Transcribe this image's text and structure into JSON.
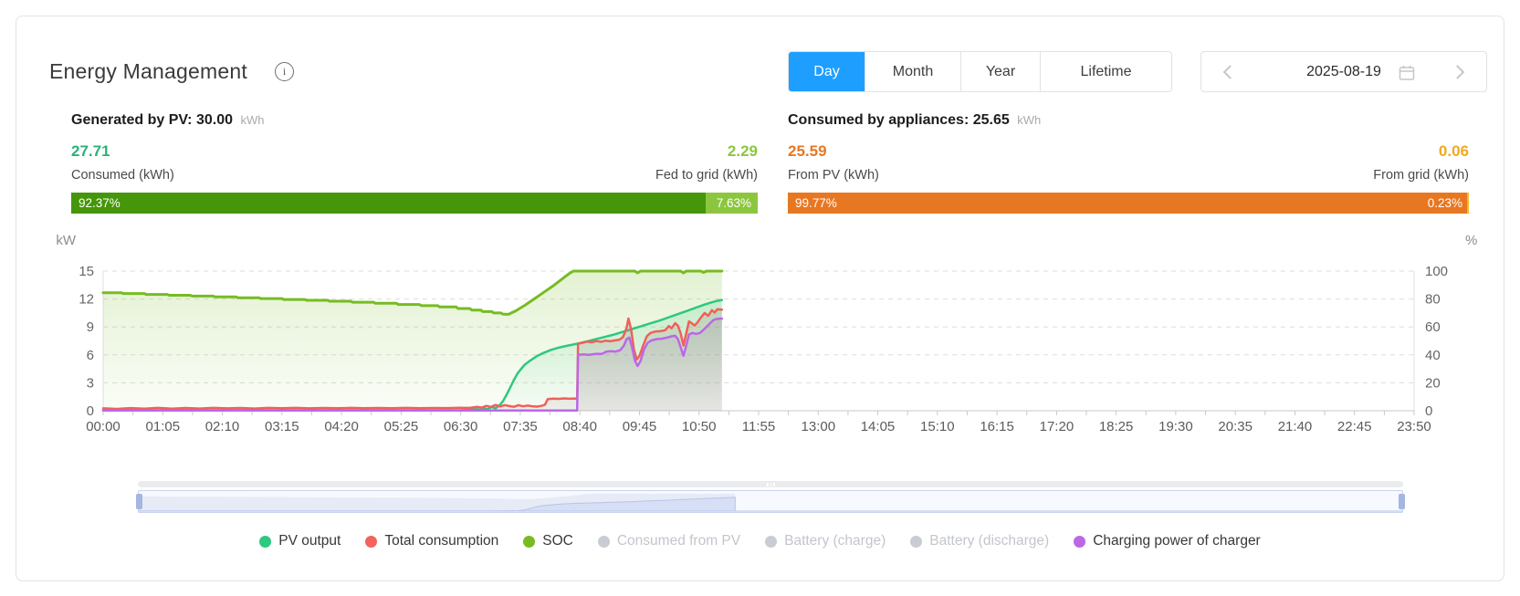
{
  "header": {
    "title": "Energy Management",
    "info_icon": "i"
  },
  "colors": {
    "tab_active": "#1E9FFF",
    "axis_text": "#5b5b5b",
    "grid_line": "#dddddd"
  },
  "tabs": [
    {
      "label": "Day",
      "active": true
    },
    {
      "label": "Month",
      "active": false
    },
    {
      "label": "Year",
      "active": false
    },
    {
      "label": "Lifetime",
      "active": false
    }
  ],
  "date_nav": {
    "date": "2025-08-19",
    "prev_icon": "chevron-left",
    "next_icon": "chevron-right",
    "calendar_icon": "calendar"
  },
  "stats": {
    "pv": {
      "title": "Generated by PV:",
      "total": "30.00",
      "unit": "kWh",
      "left": {
        "value": "27.71",
        "label": "Consumed (kWh)",
        "percent": "92.37%",
        "color": "#27B376",
        "bar_color": "#45960B"
      },
      "right": {
        "value": "2.29",
        "label": "Fed to grid (kWh)",
        "percent": "7.63%",
        "color": "#8CC63F",
        "bar_color": "#8CC63F"
      },
      "left_pct": 92.37,
      "right_pct": 7.63
    },
    "appliances": {
      "title": "Consumed by appliances:",
      "total": "25.65",
      "unit": "kWh",
      "left": {
        "value": "25.59",
        "label": "From PV (kWh)",
        "percent": "99.77%",
        "color": "#E87722",
        "bar_color": "#E87722"
      },
      "right": {
        "value": "0.06",
        "label": "From grid (kWh)",
        "percent": "0.23%",
        "color": "#F0A91E",
        "bar_color": "#F7BA2A"
      },
      "left_pct": 99.77,
      "right_pct": 0.23
    }
  },
  "chart_data": {
    "type": "line",
    "x_tick_labels": [
      "00:00",
      "01:05",
      "02:10",
      "03:15",
      "04:20",
      "05:25",
      "06:30",
      "07:35",
      "08:40",
      "09:45",
      "10:50",
      "11:55",
      "13:00",
      "14:05",
      "15:10",
      "16:15",
      "17:20",
      "18:25",
      "19:30",
      "20:35",
      "21:40",
      "22:45",
      "23:50"
    ],
    "x_max_minutes": 1430,
    "x_label_interval_minutes": 65,
    "y_left": {
      "unit": "kW",
      "min": 0,
      "max": 15,
      "ticks": [
        0,
        3,
        6,
        9,
        12,
        15
      ]
    },
    "y_right": {
      "unit": "%",
      "min": 0,
      "max": 100,
      "ticks": [
        0,
        20,
        40,
        60,
        80,
        100
      ]
    },
    "grid": {
      "horizontal_dashed": true
    },
    "data_end_minute": 675,
    "series": [
      {
        "name": "SOC",
        "axis": "right",
        "unit": "%",
        "color": "#76BC21",
        "width": 3,
        "area_from": "rgba(118,188,33,0.20)",
        "area_to": "rgba(118,188,33,0.03)",
        "points": [
          [
            0,
            84.5
          ],
          [
            20,
            84.5
          ],
          [
            22,
            83.9
          ],
          [
            45,
            83.9
          ],
          [
            47,
            83.3
          ],
          [
            70,
            83.3
          ],
          [
            72,
            82.7
          ],
          [
            95,
            82.7
          ],
          [
            97,
            82.1
          ],
          [
            120,
            82.1
          ],
          [
            122,
            81.5
          ],
          [
            145,
            81.5
          ],
          [
            147,
            80.9
          ],
          [
            170,
            80.9
          ],
          [
            172,
            80.3
          ],
          [
            195,
            80.3
          ],
          [
            197,
            79.7
          ],
          [
            220,
            79.7
          ],
          [
            222,
            79.1
          ],
          [
            245,
            79.1
          ],
          [
            247,
            78.4
          ],
          [
            270,
            78.4
          ],
          [
            272,
            77.7
          ],
          [
            295,
            77.7
          ],
          [
            297,
            76.9
          ],
          [
            320,
            76.9
          ],
          [
            322,
            76.1
          ],
          [
            345,
            76.1
          ],
          [
            347,
            75.2
          ],
          [
            365,
            75.2
          ],
          [
            367,
            74.3
          ],
          [
            385,
            74.3
          ],
          [
            387,
            73.2
          ],
          [
            400,
            73.2
          ],
          [
            402,
            72.1
          ],
          [
            412,
            72.1
          ],
          [
            414,
            71.0
          ],
          [
            424,
            71.0
          ],
          [
            426,
            70.0
          ],
          [
            434,
            70.0
          ],
          [
            436,
            69.2
          ],
          [
            442,
            69.0
          ],
          [
            450,
            71.5
          ],
          [
            460,
            75.5
          ],
          [
            470,
            80.0
          ],
          [
            480,
            84.5
          ],
          [
            490,
            89.0
          ],
          [
            498,
            93.0
          ],
          [
            504,
            96.0
          ],
          [
            509,
            98.5
          ],
          [
            513,
            100
          ],
          [
            580,
            100
          ],
          [
            583,
            98.7
          ],
          [
            586,
            100
          ],
          [
            630,
            100
          ],
          [
            633,
            98.7
          ],
          [
            636,
            100
          ],
          [
            652,
            100
          ],
          [
            655,
            99.0
          ],
          [
            658,
            100
          ],
          [
            675,
            100
          ]
        ]
      },
      {
        "name": "PV output",
        "axis": "left",
        "unit": "kW",
        "color": "#2EC87E",
        "width": 2.5,
        "area_from": "rgba(46,200,126,0.18)",
        "area_to": "rgba(46,200,126,0.02)",
        "points": [
          [
            0,
            0.05
          ],
          [
            30,
            0.05
          ],
          [
            60,
            0.05
          ],
          [
            90,
            0.05
          ],
          [
            120,
            0.05
          ],
          [
            150,
            0.05
          ],
          [
            180,
            0.05
          ],
          [
            210,
            0.05
          ],
          [
            240,
            0.05
          ],
          [
            270,
            0.05
          ],
          [
            300,
            0.05
          ],
          [
            330,
            0.05
          ],
          [
            360,
            0.05
          ],
          [
            390,
            0.06
          ],
          [
            400,
            0.1
          ],
          [
            406,
            0.22
          ],
          [
            410,
            0.12
          ],
          [
            415,
            0.3
          ],
          [
            419,
            0.16
          ],
          [
            424,
            0.4
          ],
          [
            428,
            0.25
          ],
          [
            432,
            0.55
          ],
          [
            436,
            1.0
          ],
          [
            440,
            1.7
          ],
          [
            444,
            2.5
          ],
          [
            448,
            3.3
          ],
          [
            452,
            4.0
          ],
          [
            456,
            4.5
          ],
          [
            460,
            4.95
          ],
          [
            466,
            5.4
          ],
          [
            473,
            5.85
          ],
          [
            480,
            6.2
          ],
          [
            489,
            6.55
          ],
          [
            498,
            6.8
          ],
          [
            507,
            7.0
          ],
          [
            517,
            7.2
          ],
          [
            526,
            7.4
          ],
          [
            536,
            7.65
          ],
          [
            546,
            7.9
          ],
          [
            556,
            8.15
          ],
          [
            566,
            8.45
          ],
          [
            576,
            8.75
          ],
          [
            586,
            9.05
          ],
          [
            596,
            9.35
          ],
          [
            606,
            9.65
          ],
          [
            616,
            10.0
          ],
          [
            626,
            10.35
          ],
          [
            636,
            10.7
          ],
          [
            646,
            11.05
          ],
          [
            656,
            11.4
          ],
          [
            664,
            11.65
          ],
          [
            670,
            11.8
          ],
          [
            675,
            11.9
          ]
        ]
      },
      {
        "name": "Total consumption",
        "axis": "left",
        "unit": "kW",
        "color": "#F0605A",
        "width": 2.5,
        "area_from": "rgba(145,120,118,0.22)",
        "area_to": "rgba(145,120,118,0.10)",
        "points": [
          [
            0,
            0.25
          ],
          [
            15,
            0.2
          ],
          [
            30,
            0.28
          ],
          [
            45,
            0.22
          ],
          [
            60,
            0.3
          ],
          [
            75,
            0.23
          ],
          [
            90,
            0.29
          ],
          [
            105,
            0.24
          ],
          [
            120,
            0.3
          ],
          [
            135,
            0.25
          ],
          [
            150,
            0.29
          ],
          [
            165,
            0.24
          ],
          [
            180,
            0.3
          ],
          [
            195,
            0.26
          ],
          [
            210,
            0.3
          ],
          [
            225,
            0.25
          ],
          [
            240,
            0.29
          ],
          [
            255,
            0.26
          ],
          [
            270,
            0.3
          ],
          [
            285,
            0.26
          ],
          [
            300,
            0.29
          ],
          [
            315,
            0.27
          ],
          [
            330,
            0.3
          ],
          [
            345,
            0.27
          ],
          [
            360,
            0.29
          ],
          [
            375,
            0.28
          ],
          [
            390,
            0.31
          ],
          [
            400,
            0.3
          ],
          [
            408,
            0.42
          ],
          [
            413,
            0.33
          ],
          [
            418,
            0.52
          ],
          [
            423,
            0.4
          ],
          [
            428,
            0.62
          ],
          [
            433,
            0.46
          ],
          [
            438,
            0.6
          ],
          [
            443,
            0.5
          ],
          [
            448,
            0.42
          ],
          [
            453,
            0.6
          ],
          [
            458,
            0.47
          ],
          [
            463,
            0.55
          ],
          [
            468,
            0.48
          ],
          [
            473,
            0.44
          ],
          [
            478,
            0.52
          ],
          [
            482,
            0.65
          ],
          [
            485,
            1.25
          ],
          [
            491,
            1.3
          ],
          [
            497,
            1.27
          ],
          [
            503,
            1.32
          ],
          [
            509,
            1.28
          ],
          [
            514,
            1.31
          ],
          [
            517,
            1.3
          ],
          [
            518,
            7.2
          ],
          [
            523,
            7.3
          ],
          [
            528,
            7.42
          ],
          [
            533,
            7.35
          ],
          [
            538,
            7.48
          ],
          [
            543,
            7.4
          ],
          [
            548,
            7.52
          ],
          [
            553,
            7.46
          ],
          [
            558,
            7.55
          ],
          [
            563,
            7.62
          ],
          [
            567,
            7.9
          ],
          [
            571,
            8.9
          ],
          [
            573,
            9.9
          ],
          [
            576,
            8.7
          ],
          [
            579,
            6.6
          ],
          [
            582,
            5.5
          ],
          [
            585,
            5.9
          ],
          [
            589,
            7.0
          ],
          [
            593,
            8.0
          ],
          [
            597,
            8.35
          ],
          [
            602,
            8.5
          ],
          [
            608,
            8.55
          ],
          [
            613,
            8.65
          ],
          [
            617,
            9.1
          ],
          [
            620,
            8.85
          ],
          [
            624,
            9.4
          ],
          [
            627,
            9.15
          ],
          [
            630,
            8.3
          ],
          [
            633,
            7.0
          ],
          [
            636,
            8.3
          ],
          [
            639,
            9.6
          ],
          [
            642,
            9.4
          ],
          [
            645,
            9.15
          ],
          [
            648,
            9.45
          ],
          [
            652,
            10.0
          ],
          [
            656,
            10.5
          ],
          [
            660,
            10.2
          ],
          [
            664,
            10.8
          ],
          [
            667,
            10.55
          ],
          [
            670,
            10.9
          ],
          [
            675,
            10.85
          ]
        ]
      },
      {
        "name": "Charging power of charger",
        "axis": "left",
        "unit": "kW",
        "color": "#BC67E6",
        "width": 2.5,
        "area_from": "rgba(150,130,160,0.20)",
        "area_to": "rgba(150,130,160,0.08)",
        "points": [
          [
            0,
            0.02
          ],
          [
            60,
            0.02
          ],
          [
            120,
            0.02
          ],
          [
            180,
            0.02
          ],
          [
            240,
            0.02
          ],
          [
            300,
            0.02
          ],
          [
            360,
            0.02
          ],
          [
            420,
            0.02
          ],
          [
            470,
            0.02
          ],
          [
            517,
            0.02
          ],
          [
            518,
            6.0
          ],
          [
            524,
            6.05
          ],
          [
            530,
            6.0
          ],
          [
            537,
            6.1
          ],
          [
            544,
            6.1
          ],
          [
            549,
            6.35
          ],
          [
            554,
            6.4
          ],
          [
            559,
            6.35
          ],
          [
            564,
            6.5
          ],
          [
            568,
            7.0
          ],
          [
            571,
            7.7
          ],
          [
            574,
            7.85
          ],
          [
            577,
            6.8
          ],
          [
            580,
            5.4
          ],
          [
            583,
            4.8
          ],
          [
            586,
            5.3
          ],
          [
            590,
            6.6
          ],
          [
            594,
            7.3
          ],
          [
            598,
            7.55
          ],
          [
            604,
            7.7
          ],
          [
            610,
            7.75
          ],
          [
            615,
            7.85
          ],
          [
            620,
            8.0
          ],
          [
            624,
            8.05
          ],
          [
            627,
            7.7
          ],
          [
            630,
            6.8
          ],
          [
            633,
            5.9
          ],
          [
            636,
            7.0
          ],
          [
            639,
            8.2
          ],
          [
            643,
            8.35
          ],
          [
            647,
            8.25
          ],
          [
            651,
            8.35
          ],
          [
            655,
            8.7
          ],
          [
            659,
            9.1
          ],
          [
            663,
            9.5
          ],
          [
            666,
            9.75
          ],
          [
            669,
            9.85
          ],
          [
            675,
            9.9
          ]
        ]
      }
    ]
  },
  "legend": [
    {
      "label": "PV output",
      "color": "#2EC87E",
      "active": true
    },
    {
      "label": "Total consumption",
      "color": "#F2635C",
      "active": true
    },
    {
      "label": "SOC",
      "color": "#76BC21",
      "active": true
    },
    {
      "label": "Consumed from PV",
      "color": "#C9CCD2",
      "active": false
    },
    {
      "label": "Battery (charge)",
      "color": "#C9CCD2",
      "active": false
    },
    {
      "label": "Battery (discharge)",
      "color": "#C9CCD2",
      "active": false
    },
    {
      "label": "Charging power of charger",
      "color": "#BC67E6",
      "active": true
    }
  ]
}
